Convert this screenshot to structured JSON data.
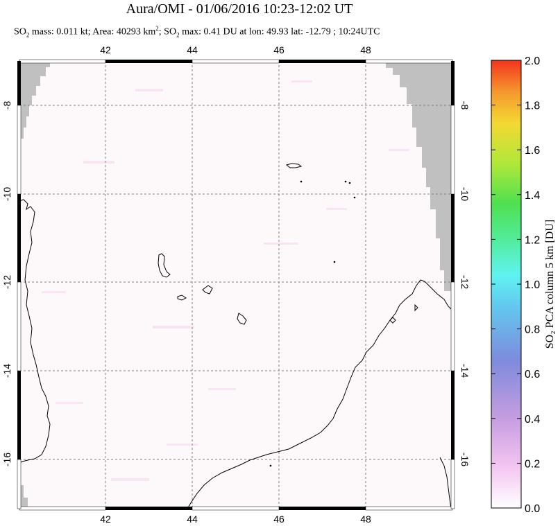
{
  "header": {
    "title": "Aura/OMI - 01/06/2016 10:23-12:02 UT",
    "so2_mass_label": "SO",
    "so2_mass_text": " mass: 0.011 kt; Area: 40293 km",
    "so2_max_label": "; SO",
    "so2_max_text": " max: 0.41 DU at lon: 49.93 lat: -12.79 ; 10:24UTC",
    "sub2": "2",
    "sup2": "2"
  },
  "map": {
    "lon_ticks": [
      "42",
      "44",
      "46",
      "48"
    ],
    "lat_ticks": [
      "-8",
      "-10",
      "-12",
      "-14",
      "-16"
    ],
    "colors": {
      "no_data": "#c0c0c0",
      "background": "#fdf8fa",
      "grid": "#808080",
      "coast": "#000000"
    }
  },
  "colorbar": {
    "title": "SO₂ PCA column 5 km [DU]",
    "ticks": [
      "2.0",
      "1.8",
      "1.6",
      "1.4",
      "1.2",
      "1.0",
      "0.8",
      "0.6",
      "0.4",
      "0.2",
      "0.0"
    ],
    "stops": [
      "#ffffff",
      "#f4c6f2",
      "#c69de0",
      "#7d8bdc",
      "#62c8ef",
      "#5ff3f0",
      "#52ec9a",
      "#4fe04f",
      "#b0e83a",
      "#f4d833",
      "#f5972e",
      "#f2341c"
    ]
  }
}
